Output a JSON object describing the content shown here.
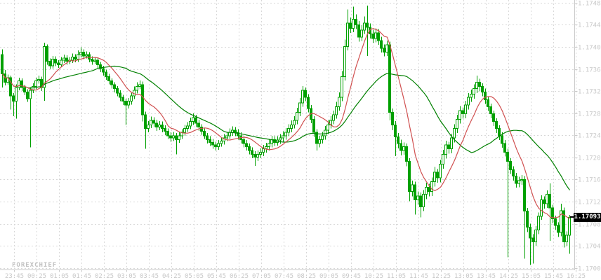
{
  "watermark": "FOREXCHIEF",
  "current_price_label": "1.17093",
  "colors": {
    "background": "#ffffff",
    "candle_green": "#00a000",
    "ma_fast_red": "#d05050",
    "ma_slow_green": "#008000",
    "grid": "#d8d8d8",
    "axis_line": "#c9c9c9",
    "axis_text": "#c8c8c8",
    "price_tag_bg": "#000000",
    "price_tag_text": "#ffffff"
  },
  "chart_data": {
    "type": "candlestick",
    "title": "",
    "xlabel": "",
    "ylabel": "",
    "interval_minutes": 5,
    "grid": true,
    "up_candle_style": "hollow-green-outline",
    "down_candle_style": "filled-green",
    "y_axis": {
      "min": 1.17,
      "max": 1.17485
    },
    "y_tick_labels": [
      "1.17485",
      "1.17445",
      "1.17404",
      "1.17364",
      "1.17324",
      "1.17283",
      "1.17243",
      "1.17202",
      "1.17162",
      "1.17122",
      "1.17081",
      "1.17041",
      "1.17000"
    ],
    "x_tick_labels": [
      "23:45",
      "00:25",
      "01:05",
      "01:45",
      "02:25",
      "03:05",
      "03:45",
      "04:25",
      "05:05",
      "05:45",
      "06:25",
      "07:05",
      "07:45",
      "08:25",
      "09:05",
      "09:45",
      "10:25",
      "11:05",
      "11:45",
      "12:25",
      "13:05",
      "13:45",
      "14:25",
      "15:05",
      "15:45",
      "16:25"
    ],
    "first_x_tick_candle_index": 4,
    "candles_per_x_tick": 8,
    "last_price": 1.17093,
    "indicators": [
      {
        "name": "ma-fast",
        "type": "sma",
        "period": 10,
        "color": "#d05050"
      },
      {
        "name": "ma-slow",
        "type": "sma",
        "period": 30,
        "color": "#008000"
      }
    ],
    "candles": [
      [
        1.1739,
        1.174,
        1.1733,
        1.17355
      ],
      [
        1.17355,
        1.17362,
        1.17334,
        1.1734
      ],
      [
        1.1734,
        1.17354,
        1.17335,
        1.17348
      ],
      [
        1.17348,
        1.17352,
        1.1729,
        1.17315
      ],
      [
        1.17315,
        1.1732,
        1.17278,
        1.17305
      ],
      [
        1.17305,
        1.17336,
        1.17273,
        1.1733
      ],
      [
        1.1733,
        1.17348,
        1.17325,
        1.17342
      ],
      [
        1.17342,
        1.17347,
        1.17324,
        1.1733
      ],
      [
        1.1733,
        1.17335,
        1.17316,
        1.17322
      ],
      [
        1.17322,
        1.17327,
        1.17304,
        1.1731
      ],
      [
        1.1731,
        1.17331,
        1.17221,
        1.17325
      ],
      [
        1.17325,
        1.17338,
        1.1732,
        1.17332
      ],
      [
        1.17332,
        1.17348,
        1.17327,
        1.17342
      ],
      [
        1.17342,
        1.17352,
        1.17337,
        1.17345
      ],
      [
        1.17345,
        1.1735,
        1.17324,
        1.1733
      ],
      [
        1.1733,
        1.17412,
        1.17306,
        1.17405
      ],
      [
        1.17405,
        1.17409,
        1.17372,
        1.17378
      ],
      [
        1.17378,
        1.17383,
        1.17364,
        1.1737
      ],
      [
        1.1737,
        1.17388,
        1.17365,
        1.17382
      ],
      [
        1.17382,
        1.17387,
        1.17369,
        1.17375
      ],
      [
        1.17375,
        1.1738,
        1.17366,
        1.17372
      ],
      [
        1.17372,
        1.17386,
        1.17367,
        1.1738
      ],
      [
        1.1738,
        1.1739,
        1.17375,
        1.17384
      ],
      [
        1.17384,
        1.17389,
        1.17372,
        1.17378
      ],
      [
        1.17378,
        1.17386,
        1.17373,
        1.1738
      ],
      [
        1.1738,
        1.17392,
        1.17375,
        1.17386
      ],
      [
        1.17386,
        1.17391,
        1.17376,
        1.17382
      ],
      [
        1.17382,
        1.17398,
        1.17377,
        1.1739
      ],
      [
        1.1739,
        1.17404,
        1.17385,
        1.17395
      ],
      [
        1.17395,
        1.174,
        1.17382,
        1.17388
      ],
      [
        1.17388,
        1.17396,
        1.17383,
        1.1739
      ],
      [
        1.1739,
        1.17395,
        1.17376,
        1.17382
      ],
      [
        1.17382,
        1.17387,
        1.17372,
        1.17378
      ],
      [
        1.17378,
        1.17386,
        1.17373,
        1.1738
      ],
      [
        1.1738,
        1.17385,
        1.17366,
        1.17372
      ],
      [
        1.17372,
        1.17377,
        1.17358,
        1.17365
      ],
      [
        1.17365,
        1.1737,
        1.17352,
        1.17358
      ],
      [
        1.17358,
        1.17363,
        1.17344,
        1.1735
      ],
      [
        1.1735,
        1.17355,
        1.17336,
        1.17342
      ],
      [
        1.17342,
        1.17347,
        1.17328,
        1.17335
      ],
      [
        1.17335,
        1.1734,
        1.17321,
        1.17328
      ],
      [
        1.17328,
        1.17333,
        1.17314,
        1.1732
      ],
      [
        1.1732,
        1.17325,
        1.17305,
        1.17312
      ],
      [
        1.17312,
        1.17317,
        1.17298,
        1.17305
      ],
      [
        1.17305,
        1.1731,
        1.17262,
        1.17298
      ],
      [
        1.17298,
        1.17311,
        1.17292,
        1.17305
      ],
      [
        1.17305,
        1.17321,
        1.17299,
        1.17315
      ],
      [
        1.17315,
        1.17332,
        1.17309,
        1.17325
      ],
      [
        1.17325,
        1.1734,
        1.17319,
        1.17332
      ],
      [
        1.17332,
        1.17343,
        1.17327,
        1.17335
      ],
      [
        1.17335,
        1.17341,
        1.17268,
        1.1728
      ],
      [
        1.1728,
        1.17286,
        1.17218,
        1.17255
      ],
      [
        1.17255,
        1.17269,
        1.17248,
        1.17262
      ],
      [
        1.17262,
        1.17277,
        1.17256,
        1.1727
      ],
      [
        1.1727,
        1.17276,
        1.17258,
        1.17265
      ],
      [
        1.17265,
        1.17271,
        1.17251,
        1.17258
      ],
      [
        1.17258,
        1.17269,
        1.17252,
        1.17262
      ],
      [
        1.17262,
        1.17268,
        1.17248,
        1.17255
      ],
      [
        1.17255,
        1.17261,
        1.17243,
        1.1725
      ],
      [
        1.1725,
        1.17255,
        1.17236,
        1.17242
      ],
      [
        1.17242,
        1.17248,
        1.17231,
        1.17238
      ],
      [
        1.17238,
        1.17249,
        1.17232,
        1.17242
      ],
      [
        1.17242,
        1.17247,
        1.17208,
        1.17235
      ],
      [
        1.17235,
        1.17248,
        1.17229,
        1.17242
      ],
      [
        1.17242,
        1.17254,
        1.17236,
        1.17248
      ],
      [
        1.17248,
        1.17262,
        1.17242,
        1.17255
      ],
      [
        1.17255,
        1.17267,
        1.17249,
        1.1726
      ],
      [
        1.1726,
        1.17275,
        1.17254,
        1.17268
      ],
      [
        1.17268,
        1.17283,
        1.17262,
        1.17275
      ],
      [
        1.17275,
        1.1728,
        1.17258,
        1.17265
      ],
      [
        1.17265,
        1.17271,
        1.17251,
        1.17258
      ],
      [
        1.17258,
        1.17263,
        1.17244,
        1.1725
      ],
      [
        1.1725,
        1.17255,
        1.17236,
        1.17242
      ],
      [
        1.17242,
        1.17247,
        1.17228,
        1.17235
      ],
      [
        1.17235,
        1.17241,
        1.17223,
        1.1723
      ],
      [
        1.1723,
        1.17236,
        1.17218,
        1.17225
      ],
      [
        1.17225,
        1.17231,
        1.17215,
        1.17222
      ],
      [
        1.17222,
        1.17234,
        1.17216,
        1.17228
      ],
      [
        1.17228,
        1.17239,
        1.17222,
        1.17232
      ],
      [
        1.17232,
        1.17245,
        1.17226,
        1.17238
      ],
      [
        1.17238,
        1.17249,
        1.17232,
        1.17242
      ],
      [
        1.17242,
        1.17255,
        1.17236,
        1.17248
      ],
      [
        1.17248,
        1.17259,
        1.17242,
        1.17252
      ],
      [
        1.17252,
        1.17258,
        1.17241,
        1.17248
      ],
      [
        1.17248,
        1.17254,
        1.17235,
        1.17242
      ],
      [
        1.17242,
        1.17248,
        1.17228,
        1.17235
      ],
      [
        1.17235,
        1.17241,
        1.17221,
        1.17228
      ],
      [
        1.17228,
        1.17234,
        1.17215,
        1.17222
      ],
      [
        1.17222,
        1.17228,
        1.17208,
        1.17215
      ],
      [
        1.17215,
        1.17221,
        1.17201,
        1.17208
      ],
      [
        1.17208,
        1.17214,
        1.17187,
        1.17203
      ],
      [
        1.17203,
        1.17215,
        1.17196,
        1.17208
      ],
      [
        1.17208,
        1.17219,
        1.17201,
        1.17212
      ],
      [
        1.17212,
        1.17225,
        1.17205,
        1.17218
      ],
      [
        1.17218,
        1.17229,
        1.17211,
        1.17222
      ],
      [
        1.17222,
        1.17235,
        1.17215,
        1.17228
      ],
      [
        1.17228,
        1.17242,
        1.17221,
        1.17235
      ],
      [
        1.17235,
        1.17241,
        1.17223,
        1.1723
      ],
      [
        1.1723,
        1.17241,
        1.17224,
        1.17234
      ],
      [
        1.17234,
        1.17245,
        1.17227,
        1.17238
      ],
      [
        1.17238,
        1.1725,
        1.17231,
        1.17242
      ],
      [
        1.17242,
        1.17256,
        1.17235,
        1.17248
      ],
      [
        1.17248,
        1.17263,
        1.17241,
        1.17255
      ],
      [
        1.17255,
        1.1727,
        1.17248,
        1.17262
      ],
      [
        1.17262,
        1.17278,
        1.17255,
        1.1727
      ],
      [
        1.1727,
        1.17293,
        1.17263,
        1.17285
      ],
      [
        1.17285,
        1.17311,
        1.17278,
        1.17302
      ],
      [
        1.17302,
        1.17333,
        1.17295,
        1.17325
      ],
      [
        1.17325,
        1.1733,
        1.17305,
        1.17312
      ],
      [
        1.17312,
        1.17318,
        1.17285,
        1.17292
      ],
      [
        1.17292,
        1.17298,
        1.17265,
        1.17272
      ],
      [
        1.17272,
        1.17278,
        1.1724,
        1.17248
      ],
      [
        1.17248,
        1.17254,
        1.17215,
        1.17228
      ],
      [
        1.17228,
        1.17242,
        1.17221,
        1.17235
      ],
      [
        1.17235,
        1.17249,
        1.17228,
        1.17242
      ],
      [
        1.17242,
        1.1726,
        1.17235,
        1.17252
      ],
      [
        1.17252,
        1.1727,
        1.17245,
        1.17262
      ],
      [
        1.17262,
        1.17278,
        1.17255,
        1.1727
      ],
      [
        1.1727,
        1.17288,
        1.17263,
        1.1728
      ],
      [
        1.1728,
        1.17304,
        1.17273,
        1.17295
      ],
      [
        1.17295,
        1.17321,
        1.17288,
        1.17312
      ],
      [
        1.17312,
        1.1736,
        1.17305,
        1.1735
      ],
      [
        1.1735,
        1.17418,
        1.17343,
        1.17405
      ],
      [
        1.17405,
        1.17473,
        1.17398,
        1.17448
      ],
      [
        1.17448,
        1.17458,
        1.1743,
        1.17438
      ],
      [
        1.17438,
        1.17478,
        1.17431,
        1.17455
      ],
      [
        1.17455,
        1.17464,
        1.17437,
        1.17445
      ],
      [
        1.17445,
        1.17452,
        1.17414,
        1.17422
      ],
      [
        1.17422,
        1.17444,
        1.17415,
        1.17435
      ],
      [
        1.17435,
        1.1746,
        1.17428,
        1.17448
      ],
      [
        1.17448,
        1.1748,
        1.17388,
        1.1744
      ],
      [
        1.1744,
        1.17447,
        1.1742,
        1.17428
      ],
      [
        1.17428,
        1.17436,
        1.17412,
        1.1742
      ],
      [
        1.1742,
        1.17438,
        1.17413,
        1.1743
      ],
      [
        1.1743,
        1.17437,
        1.17408,
        1.17416
      ],
      [
        1.17416,
        1.17423,
        1.17394,
        1.17402
      ],
      [
        1.17402,
        1.17409,
        1.17387,
        1.17395
      ],
      [
        1.17395,
        1.17416,
        1.17388,
        1.17408
      ],
      [
        1.17408,
        1.17414,
        1.1727,
        1.17285
      ],
      [
        1.17285,
        1.17292,
        1.17252,
        1.17262
      ],
      [
        1.17262,
        1.17269,
        1.17205,
        1.1724
      ],
      [
        1.1724,
        1.17247,
        1.17219,
        1.17228
      ],
      [
        1.17228,
        1.17235,
        1.17206,
        1.17215
      ],
      [
        1.17215,
        1.1723,
        1.17207,
        1.17222
      ],
      [
        1.17222,
        1.17228,
        1.17186,
        1.17195
      ],
      [
        1.17195,
        1.17201,
        1.17122,
        1.1714
      ],
      [
        1.1714,
        1.1716,
        1.17131,
        1.17152
      ],
      [
        1.17152,
        1.17158,
        1.17098,
        1.17125
      ],
      [
        1.17125,
        1.1714,
        1.17116,
        1.17132
      ],
      [
        1.17132,
        1.17138,
        1.17093,
        1.17112
      ],
      [
        1.17112,
        1.17143,
        1.17104,
        1.17135
      ],
      [
        1.17135,
        1.17156,
        1.17126,
        1.17148
      ],
      [
        1.17148,
        1.17154,
        1.17131,
        1.1714
      ],
      [
        1.1714,
        1.17166,
        1.17132,
        1.17158
      ],
      [
        1.17158,
        1.17185,
        1.17149,
        1.17175
      ],
      [
        1.17175,
        1.17181,
        1.17156,
        1.17165
      ],
      [
        1.17165,
        1.17198,
        1.17157,
        1.1719
      ],
      [
        1.1719,
        1.17216,
        1.17182,
        1.17208
      ],
      [
        1.17208,
        1.17233,
        1.172,
        1.17225
      ],
      [
        1.17225,
        1.17231,
        1.17209,
        1.17218
      ],
      [
        1.17218,
        1.17246,
        1.1721,
        1.17238
      ],
      [
        1.17238,
        1.17263,
        1.1723,
        1.17255
      ],
      [
        1.17255,
        1.1728,
        1.17247,
        1.17272
      ],
      [
        1.17272,
        1.17296,
        1.17264,
        1.17288
      ],
      [
        1.17288,
        1.17294,
        1.17273,
        1.17282
      ],
      [
        1.17282,
        1.17306,
        1.17274,
        1.17298
      ],
      [
        1.17298,
        1.1732,
        1.1729,
        1.17312
      ],
      [
        1.17312,
        1.17326,
        1.17304,
        1.17318
      ],
      [
        1.17318,
        1.17336,
        1.1731,
        1.17328
      ],
      [
        1.17328,
        1.17352,
        1.1732,
        1.1734
      ],
      [
        1.1734,
        1.17346,
        1.17323,
        1.17332
      ],
      [
        1.17332,
        1.17338,
        1.17314,
        1.17322
      ],
      [
        1.17322,
        1.17328,
        1.173,
        1.17308
      ],
      [
        1.17308,
        1.17314,
        1.17287,
        1.17295
      ],
      [
        1.17295,
        1.17301,
        1.17274,
        1.17282
      ],
      [
        1.17282,
        1.17288,
        1.1726,
        1.17268
      ],
      [
        1.17268,
        1.17274,
        1.17247,
        1.17255
      ],
      [
        1.17255,
        1.17261,
        1.17234,
        1.17242
      ],
      [
        1.17242,
        1.17248,
        1.1722,
        1.17228
      ],
      [
        1.17228,
        1.17234,
        1.17204,
        1.17212
      ],
      [
        1.17212,
        1.17218,
        1.1702,
        1.17195
      ],
      [
        1.17195,
        1.17201,
        1.17172,
        1.1718
      ],
      [
        1.1718,
        1.17186,
        1.1716,
        1.17168
      ],
      [
        1.17168,
        1.17174,
        1.17147,
        1.17155
      ],
      [
        1.17155,
        1.17167,
        1.17148,
        1.1716
      ],
      [
        1.1716,
        1.1717,
        1.17152,
        1.17162
      ],
      [
        1.17162,
        1.17168,
        1.17017,
        1.17104
      ],
      [
        1.17104,
        1.1711,
        1.17066,
        1.17075
      ],
      [
        1.17075,
        1.17081,
        1.17006,
        1.17055
      ],
      [
        1.17055,
        1.17062,
        1.17008,
        1.17048
      ],
      [
        1.17048,
        1.17077,
        1.1704,
        1.1707
      ],
      [
        1.1707,
        1.17102,
        1.17062,
        1.17095
      ],
      [
        1.17095,
        1.17133,
        1.17088,
        1.17125
      ],
      [
        1.17125,
        1.17131,
        1.17109,
        1.17118
      ],
      [
        1.17118,
        1.17142,
        1.1711,
        1.17135
      ],
      [
        1.17135,
        1.17155,
        1.1705,
        1.1711
      ],
      [
        1.1711,
        1.17116,
        1.17082,
        1.1709
      ],
      [
        1.1709,
        1.17096,
        1.1707,
        1.17078
      ],
      [
        1.17078,
        1.17084,
        1.17057,
        1.17065
      ],
      [
        1.17065,
        1.17118,
        1.17058,
        1.17105
      ],
      [
        1.17105,
        1.17111,
        1.17038,
        1.17048
      ],
      [
        1.17048,
        1.17067,
        1.1704,
        1.1706
      ],
      [
        1.1706,
        1.17097,
        1.17026,
        1.17093
      ]
    ]
  }
}
